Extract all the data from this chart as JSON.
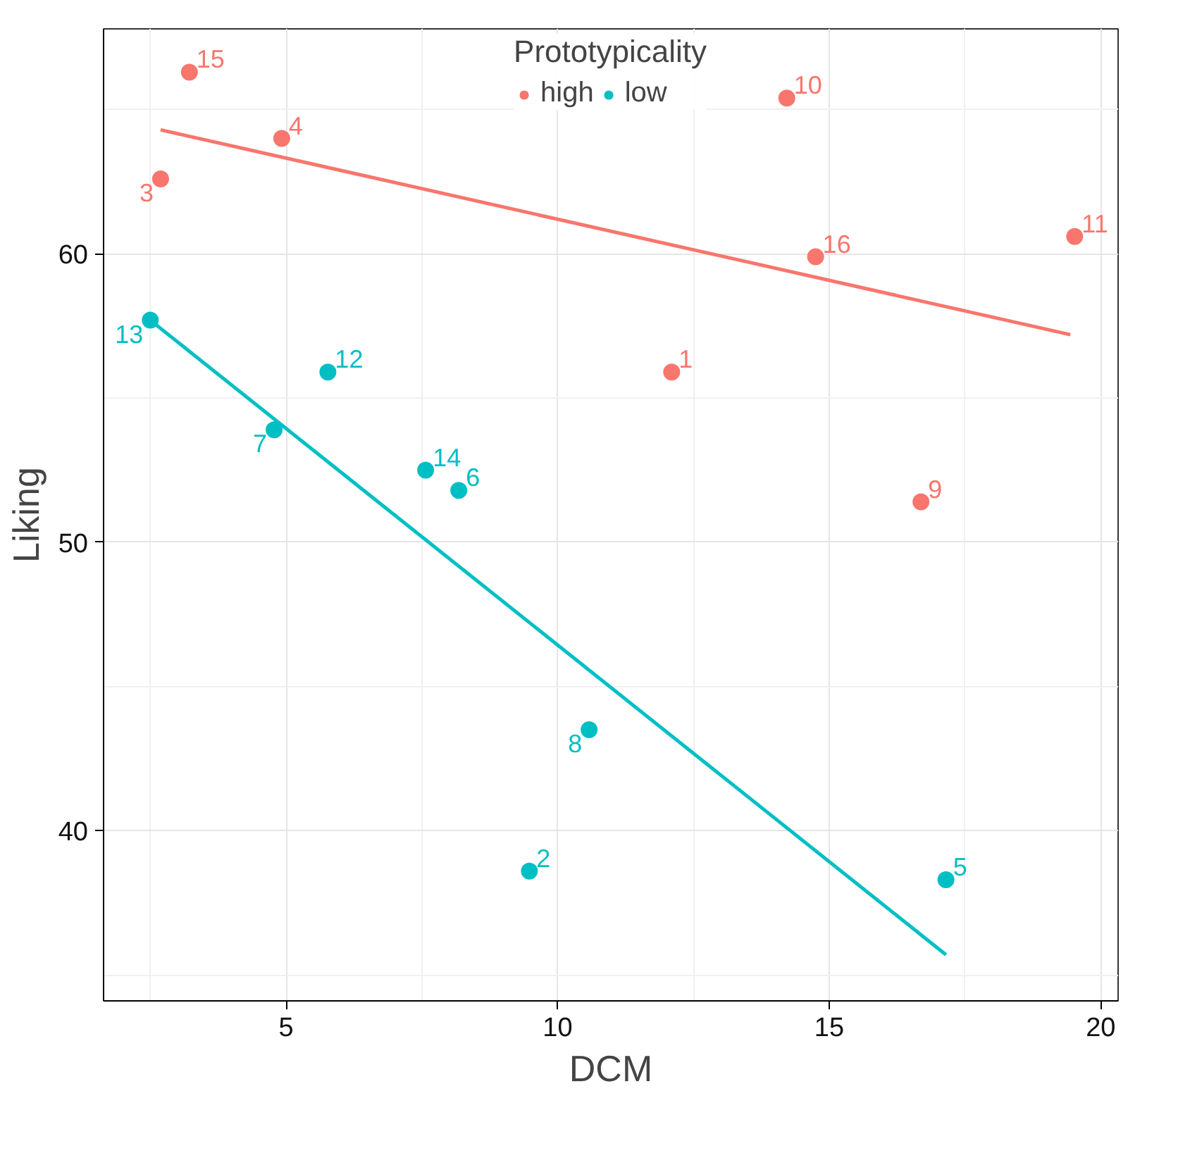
{
  "chart_data": {
    "type": "scatter",
    "xlabel": "DCM",
    "ylabel": "Liking",
    "legend_title": "Prototypicality",
    "legend": "top",
    "grid": true,
    "marker": "circle",
    "xlim": [
      1.64,
      20.32
    ],
    "ylim": [
      34.1,
      67.8
    ],
    "xticks": [
      5,
      10,
      15,
      20
    ],
    "yticks": [
      40,
      50,
      60
    ],
    "series": [
      {
        "name": "high",
        "color": "#f8766d",
        "x": [
          3.22,
          2.69,
          4.92,
          14.22,
          14.75,
          19.52,
          12.1,
          16.69
        ],
        "values": [
          66.3,
          62.6,
          64.0,
          65.4,
          59.9,
          60.6,
          55.9,
          51.4
        ]
      },
      {
        "name": "low",
        "color": "#00bfc4",
        "x": [
          2.5,
          5.77,
          4.78,
          7.57,
          8.18,
          10.58,
          9.48,
          17.15
        ],
        "values": [
          57.7,
          55.9,
          53.9,
          52.5,
          51.8,
          43.5,
          38.6,
          38.3
        ]
      },
      {
        "type": "line",
        "color": "#f8766d",
        "line_style": "solid",
        "marker": "none",
        "x": [
          2.69,
          19.44
        ],
        "values": [
          64.3,
          57.2
        ]
      },
      {
        "type": "line",
        "color": "#00bfc4",
        "line_style": "solid",
        "marker": "none",
        "x": [
          2.5,
          17.15
        ],
        "values": [
          57.7,
          35.7
        ]
      }
    ],
    "annotations": [
      {
        "text": "15",
        "x": 3.22,
        "y": 66.3
      },
      {
        "text": "3",
        "x": 2.69,
        "y": 62.6
      },
      {
        "text": "4",
        "x": 4.92,
        "y": 64.0
      },
      {
        "text": "10",
        "x": 14.22,
        "y": 65.4
      },
      {
        "text": "16",
        "x": 14.75,
        "y": 59.9
      },
      {
        "text": "11",
        "x": 19.52,
        "y": 60.6
      },
      {
        "text": "1",
        "x": 12.1,
        "y": 55.9
      },
      {
        "text": "9",
        "x": 16.69,
        "y": 51.4
      },
      {
        "text": "13",
        "x": 2.5,
        "y": 57.7
      },
      {
        "text": "12",
        "x": 5.77,
        "y": 55.9
      },
      {
        "text": "7",
        "x": 4.78,
        "y": 53.9
      },
      {
        "text": "14",
        "x": 7.57,
        "y": 52.5
      },
      {
        "text": "6",
        "x": 8.18,
        "y": 51.8
      },
      {
        "text": "8",
        "x": 10.58,
        "y": 43.5
      },
      {
        "text": "2",
        "x": 9.48,
        "y": 38.6
      },
      {
        "text": "5",
        "x": 17.15,
        "y": 38.3
      }
    ]
  }
}
